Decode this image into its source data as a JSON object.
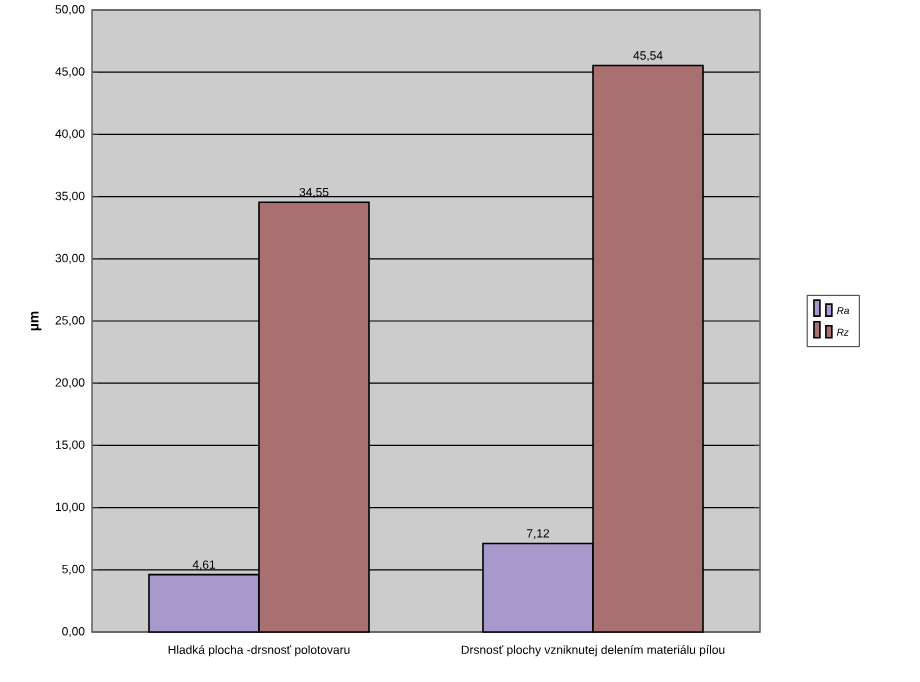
{
  "chart_data": {
    "type": "bar",
    "ylabel": "µm",
    "categories": [
      "Hladká plocha -drsnosť polotovaru",
      "Drsnosť plochy vzniknutej delením materiálu pílou"
    ],
    "series": [
      {
        "name": "Ra",
        "color": "#a899cc",
        "values": [
          4.61,
          7.12
        ],
        "value_labels": [
          "4,61",
          "7,12"
        ]
      },
      {
        "name": "Rz",
        "color": "#a87070",
        "values": [
          34.55,
          45.54
        ],
        "value_labels": [
          "34,55",
          "45,54"
        ]
      }
    ],
    "ylim": [
      0,
      50
    ],
    "yticks": [
      {
        "value": 0,
        "label": "0,00"
      },
      {
        "value": 5,
        "label": "5,00"
      },
      {
        "value": 10,
        "label": "10,00"
      },
      {
        "value": 15,
        "label": "15,00"
      },
      {
        "value": 20,
        "label": "20,00"
      },
      {
        "value": 25,
        "label": "25,00"
      },
      {
        "value": 30,
        "label": "30,00"
      },
      {
        "value": 35,
        "label": "35,00"
      },
      {
        "value": 40,
        "label": "40,00"
      },
      {
        "value": 45,
        "label": "45,00"
      },
      {
        "value": 50,
        "label": "50,00"
      }
    ],
    "grid": "y",
    "legend": "right"
  }
}
